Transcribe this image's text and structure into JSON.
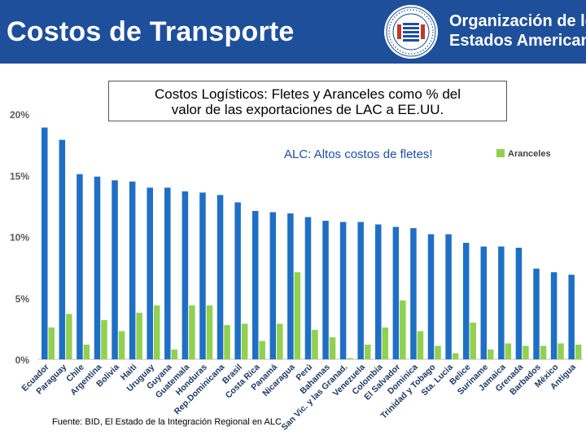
{
  "header": {
    "title": "Costos de Transporte",
    "org_line1": "Organización de los",
    "org_line2": "Estados Americanos",
    "bg_color": "#1e4f9a"
  },
  "chart_data": {
    "type": "bar",
    "title_line1": "Costos Logísticos: Fletes y Aranceles como % del",
    "title_line2": "valor de las exportaciones de LAC a EE.UU.",
    "annotation": "ALC: Altos costos de fletes!",
    "categories": [
      "Ecuador",
      "Paraguay",
      "Chile",
      "Argentina",
      "Bolivia",
      "Haiti",
      "Uruguay",
      "Guyana",
      "Guatemala",
      "Honduras",
      "Rep.Dominicana",
      "Brasil",
      "Costa Rica",
      "Panamá",
      "Nicaragua",
      "Perú",
      "Bahamas",
      "San Vic. y las Granad.",
      "Venezuela",
      "Colombia",
      "El Salvador",
      "Dominica",
      "Trinidad y Tobago",
      "Sta. Lucia",
      "Belice",
      "Suriname",
      "Jamaica",
      "Grenada",
      "Barbados",
      "México",
      "Antigua"
    ],
    "series": [
      {
        "name": "",
        "color": "#1f6fc5",
        "values": [
          18.9,
          17.9,
          15.1,
          14.9,
          14.6,
          14.5,
          14.0,
          14.0,
          13.7,
          13.6,
          13.4,
          12.8,
          12.1,
          12.0,
          11.9,
          11.6,
          11.3,
          11.2,
          11.2,
          11.0,
          10.8,
          10.7,
          10.2,
          10.2,
          9.5,
          9.2,
          9.2,
          9.1,
          7.4,
          7.1,
          6.9
        ]
      },
      {
        "name": "Aranceles",
        "color": "#92d050",
        "values": [
          2.6,
          3.7,
          1.2,
          3.2,
          2.3,
          3.8,
          4.4,
          0.8,
          4.4,
          4.4,
          2.8,
          2.9,
          1.5,
          2.9,
          7.1,
          2.4,
          1.8,
          0.1,
          1.2,
          2.6,
          4.8,
          2.3,
          1.1,
          0.5,
          3.0,
          0.8,
          1.3,
          1.1,
          1.1,
          1.3,
          1.2
        ]
      }
    ],
    "ylim": [
      0,
      20
    ],
    "yticks": [
      "0%",
      "5%",
      "10%",
      "15%",
      "20%"
    ],
    "ytick_values": [
      0,
      5,
      10,
      15,
      20
    ],
    "annotation_color": "#1f4ea8",
    "legend_position": "top-right"
  },
  "footer": {
    "source": "Fuente: BID,  El Estado de la Integración Regional en ALC"
  }
}
